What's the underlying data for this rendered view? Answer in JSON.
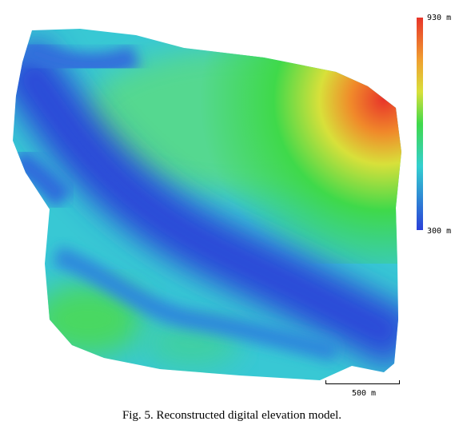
{
  "colorbar": {
    "max_label": "930 m",
    "min_label": "300 m"
  },
  "scale_bar": {
    "label": "500 m"
  },
  "caption": "Fig. 5. Reconstructed digital elevation model."
}
